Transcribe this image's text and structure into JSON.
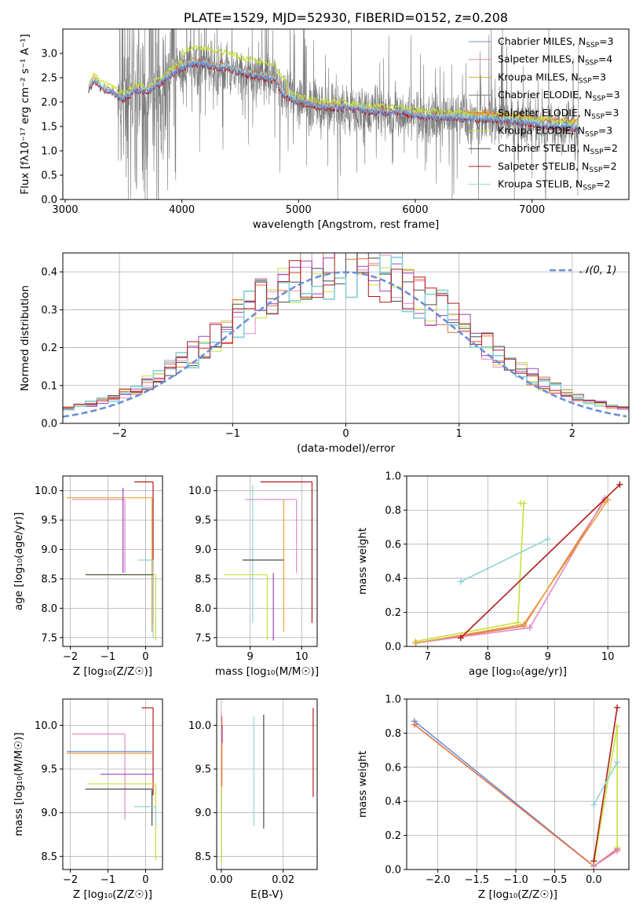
{
  "colors": {
    "chabrier_miles": "#6a8fd8",
    "salpeter_miles": "#e389c2",
    "kroupa_miles": "#e6a23c",
    "chabrier_elodie": "#7a7a7a",
    "salpeter_elodie": "#e76f3f",
    "kroupa_elodie": "#c5e23a",
    "chabrier_stelib": "#4a4a4a",
    "salpeter_stelib": "#b01c1c",
    "kroupa_stelib": "#8fd3d8",
    "normal_curve": "#6a8fd8",
    "extra_purple": "#a040c0",
    "grid": "#b0b0b0"
  },
  "chart_data": [
    {
      "id": "spectrum",
      "type": "line",
      "title": "PLATE=1529, MJD=52930, FIBERID=0152, z=0.208",
      "xlabel": "wavelength [Angstrom, rest frame]",
      "ylabel": "Flux [fλ10⁻¹⁷ erg cm⁻² s⁻¹ A⁻¹]",
      "xlim": [
        2980,
        7830
      ],
      "ylim": [
        0,
        3.5
      ],
      "xticks": [
        3000,
        4000,
        5000,
        6000,
        7000
      ],
      "xtick_labels": [
        "3000",
        "4000",
        "5000",
        "6000",
        "7000"
      ],
      "yticks": [
        0.0,
        0.5,
        1.0,
        1.5,
        2.0,
        2.5,
        3.0
      ],
      "ytick_labels": [
        "0.0",
        "0.5",
        "1.0",
        "1.5",
        "2.0",
        "2.5",
        "3.0"
      ],
      "grid": false,
      "legend_position": "top-right",
      "legend": [
        {
          "label": "Chabrier MILES, N",
          "sub": "SSP",
          "suffix": "=3",
          "color_key": "chabrier_miles"
        },
        {
          "label": "Salpeter MILES, N",
          "sub": "SSP",
          "suffix": "=4",
          "color_key": "salpeter_miles"
        },
        {
          "label": "Kroupa MILES, N",
          "sub": "SSP",
          "suffix": "=3",
          "color_key": "kroupa_miles"
        },
        {
          "label": "Chabrier ELODIE, N",
          "sub": "SSP",
          "suffix": "=3",
          "color_key": "chabrier_elodie"
        },
        {
          "label": "Salpeter ELODIE, N",
          "sub": "SSP",
          "suffix": "=3",
          "color_key": "salpeter_elodie"
        },
        {
          "label": "Kroupa ELODIE, N",
          "sub": "SSP",
          "suffix": "=3",
          "color_key": "kroupa_elodie"
        },
        {
          "label": "Chabrier STELIB, N",
          "sub": "SSP",
          "suffix": "=2",
          "color_key": "chabrier_stelib"
        },
        {
          "label": "Salpeter STELIB, N",
          "sub": "SSP",
          "suffix": "=2",
          "color_key": "salpeter_stelib"
        },
        {
          "label": "Kroupa STELIB, N",
          "sub": "SSP",
          "suffix": "=2",
          "color_key": "kroupa_stelib"
        }
      ],
      "continuum": {
        "x": [
          3200,
          3250,
          3300,
          3400,
          3500,
          3600,
          3700,
          3800,
          3900,
          4000,
          4100,
          4200,
          4300,
          4400,
          4500,
          4600,
          4700,
          4800,
          4850,
          4900,
          5000,
          5100,
          5200,
          5300,
          5400,
          5500,
          5600,
          5700,
          5800,
          5900,
          6000,
          6100,
          6200,
          6300,
          6400,
          6500,
          6600,
          6700,
          6800,
          6900,
          7000,
          7100,
          7200,
          7300,
          7400
        ],
        "y": [
          2.25,
          2.45,
          2.3,
          2.2,
          2.05,
          2.25,
          2.2,
          2.35,
          2.55,
          2.7,
          2.8,
          2.78,
          2.7,
          2.7,
          2.6,
          2.55,
          2.5,
          2.45,
          2.2,
          2.1,
          2.0,
          1.95,
          1.9,
          1.88,
          1.88,
          1.85,
          1.8,
          1.8,
          1.78,
          1.78,
          1.72,
          1.7,
          1.68,
          1.68,
          1.66,
          1.65,
          1.65,
          1.62,
          1.62,
          1.58,
          1.55,
          1.52,
          1.5,
          1.48,
          1.45
        ]
      },
      "noisy_observed": {
        "x_range": [
          3450,
          7400
        ],
        "y_range": [
          0,
          3.5
        ],
        "color_key": "chabrier_elodie"
      }
    },
    {
      "id": "residual_histogram",
      "type": "line",
      "xlabel": "(data-model)/error",
      "ylabel": "Normed distribution",
      "xlim": [
        -2.5,
        2.5
      ],
      "ylim": [
        0,
        0.45
      ],
      "xticks": [
        -2,
        -1,
        0,
        1,
        2
      ],
      "xtick_labels": [
        "−2",
        "−1",
        "0",
        "1",
        "2"
      ],
      "yticks": [
        0.0,
        0.1,
        0.2,
        0.3,
        0.4
      ],
      "ytick_labels": [
        "0.0",
        "0.1",
        "0.2",
        "0.3",
        "0.4"
      ],
      "grid": true,
      "legend_position": "top-right",
      "legend": [
        {
          "label": "𝒩(0, 1)",
          "color_key": "normal_curve"
        }
      ],
      "bin_width": 0.1,
      "normal_curve": {
        "mean": 0,
        "sigma": 1
      }
    },
    {
      "id": "age_vs_Z",
      "type": "scatter",
      "xlabel": "Z [log₁₀(Z/Z☉)]",
      "ylabel": "age  [log₁₀(age/yr)]",
      "xlim": [
        -2.2,
        0.45
      ],
      "ylim": [
        7.35,
        10.25
      ],
      "xticks": [
        -2,
        -1,
        0
      ],
      "xtick_labels": [
        "−2",
        "−1",
        "0"
      ],
      "yticks": [
        7.5,
        8.0,
        8.5,
        9.0,
        9.5,
        10.0
      ],
      "ytick_labels": [
        "7.5",
        "8.0",
        "8.5",
        "9.0",
        "9.5",
        "10.0"
      ],
      "grid": true,
      "crosses": [
        {
          "color_key": "salpeter_stelib",
          "x": 0.2,
          "y": 10.15,
          "x_low": -0.3,
          "y_low": 7.75
        },
        {
          "color_key": "kroupa_miles",
          "x": 0.17,
          "y": 9.88,
          "x_low": -2.1,
          "y_low": 7.6
        },
        {
          "color_key": "salpeter_miles",
          "x": -0.55,
          "y": 9.85,
          "x_low": -1.95,
          "y_low": 8.6
        },
        {
          "color_key": "extra_purple",
          "x": -0.6,
          "y": 10.05,
          "x_low": -0.6,
          "y_low": 8.6
        },
        {
          "color_key": "kroupa_stelib",
          "x": 0.2,
          "y": 8.82,
          "x_low": -0.2,
          "y_low": 7.5
        },
        {
          "color_key": "kroupa_elodie",
          "x": 0.27,
          "y": 8.57,
          "x_low": -1.55,
          "y_low": 7.45
        },
        {
          "color_key": "chabrier_stelib",
          "x": 0.2,
          "y": 8.57,
          "x_low": -1.6,
          "y_low": 8.57
        }
      ]
    },
    {
      "id": "age_vs_mass",
      "type": "scatter",
      "xlabel": "mass [log₁₀(M/M☉)]",
      "ylabel": "",
      "xlim": [
        8.35,
        10.3
      ],
      "ylim": [
        7.35,
        10.25
      ],
      "xticks": [
        9,
        10
      ],
      "xtick_labels": [
        "9",
        "10"
      ],
      "yticks": [
        7.5,
        8.0,
        8.5,
        9.0,
        9.5,
        10.0
      ],
      "ytick_labels": [
        "7.5",
        "8.0",
        "8.5",
        "9.0",
        "9.5",
        "10.0"
      ],
      "grid": true,
      "crosses": [
        {
          "color_key": "salpeter_stelib",
          "x": 10.2,
          "y": 10.15,
          "x_low": 9.2,
          "y_low": 7.75
        },
        {
          "color_key": "kroupa_miles",
          "x": 9.65,
          "y": 9.85,
          "x_low": 9.3,
          "y_low": 7.6
        },
        {
          "color_key": "salpeter_miles",
          "x": 9.9,
          "y": 9.85,
          "x_low": 8.9,
          "y_low": 8.6
        },
        {
          "color_key": "kroupa_stelib",
          "x": 9.05,
          "y": 10.1,
          "x_low": 9.05,
          "y_low": 7.75
        },
        {
          "color_key": "extra_purple",
          "x": 9.45,
          "y": 8.6,
          "x_low": 9.45,
          "y_low": 7.45
        },
        {
          "color_key": "kroupa_elodie",
          "x": 9.33,
          "y": 8.57,
          "x_low": 8.5,
          "y_low": 7.45
        },
        {
          "color_key": "chabrier_stelib",
          "x": 9.65,
          "y": 8.82,
          "x_low": 8.85,
          "y_low": 8.82
        }
      ]
    },
    {
      "id": "weight_vs_age",
      "type": "line",
      "xlabel": "age  [log₁₀(age/yr)]",
      "ylabel": "mass weight",
      "xlim": [
        6.65,
        10.35
      ],
      "ylim": [
        0,
        1.0
      ],
      "xticks": [
        7,
        8,
        9,
        10
      ],
      "xtick_labels": [
        "7",
        "8",
        "9",
        "10"
      ],
      "yticks": [
        0.0,
        0.2,
        0.4,
        0.6,
        0.8,
        1.0
      ],
      "ytick_labels": [
        "0.0",
        "0.2",
        "0.4",
        "0.6",
        "0.8",
        "1.0"
      ],
      "grid": true,
      "series": [
        {
          "color_key": "kroupa_elodie",
          "x": [
            6.8,
            8.5,
            8.6,
            8.55
          ],
          "y": [
            0.03,
            0.14,
            0.84,
            0.84
          ]
        },
        {
          "color_key": "salpeter_elodie",
          "x": [
            6.8,
            8.6,
            9.95
          ],
          "y": [
            0.02,
            0.12,
            0.86
          ]
        },
        {
          "color_key": "salpeter_miles",
          "x": [
            6.8,
            8.7,
            9.95
          ],
          "y": [
            0.02,
            0.11,
            0.87
          ]
        },
        {
          "color_key": "kroupa_miles",
          "x": [
            6.8,
            8.6,
            10.0
          ],
          "y": [
            0.02,
            0.13,
            0.86
          ]
        },
        {
          "color_key": "kroupa_stelib",
          "x": [
            7.55,
            9.0
          ],
          "y": [
            0.38,
            0.63
          ]
        },
        {
          "color_key": "salpeter_stelib",
          "x": [
            7.55,
            10.2
          ],
          "y": [
            0.05,
            0.95
          ]
        }
      ]
    },
    {
      "id": "mass_vs_Z",
      "type": "scatter",
      "xlabel": "Z [log₁₀(Z/Z☉)]",
      "ylabel": "mass [log₁₀(M/M☉)]",
      "xlim": [
        -2.2,
        0.45
      ],
      "ylim": [
        8.35,
        10.3
      ],
      "xticks": [
        -2,
        -1,
        0
      ],
      "xtick_labels": [
        "−2",
        "−1",
        "0"
      ],
      "yticks": [
        8.5,
        9.0,
        9.5,
        10.0
      ],
      "ytick_labels": [
        "8.5",
        "9.0",
        "9.5",
        "10.0"
      ],
      "grid": true,
      "crosses": [
        {
          "color_key": "salpeter_stelib",
          "x": 0.2,
          "y": 10.2,
          "x_low": -0.1,
          "y_low": 9.2
        },
        {
          "color_key": "salpeter_miles",
          "x": -0.55,
          "y": 9.9,
          "x_low": -1.95,
          "y_low": 8.92
        },
        {
          "color_key": "kroupa_miles",
          "x": 0.17,
          "y": 9.68,
          "x_low": -2.1,
          "y_low": 9.68
        },
        {
          "color_key": "chabrier_miles",
          "x": 0.17,
          "y": 9.7,
          "x_low": -2.1,
          "y_low": 9.7
        },
        {
          "color_key": "extra_purple",
          "x": 0.2,
          "y": 9.44,
          "x_low": -1.2,
          "y_low": 9.44
        },
        {
          "color_key": "kroupa_elodie",
          "x": 0.27,
          "y": 9.33,
          "x_low": -1.55,
          "y_low": 8.45
        },
        {
          "color_key": "chabrier_stelib",
          "x": 0.17,
          "y": 9.27,
          "x_low": -1.6,
          "y_low": 8.85
        },
        {
          "color_key": "kroupa_stelib",
          "x": 0.27,
          "y": 9.07,
          "x_low": -0.3,
          "y_low": 8.85
        }
      ]
    },
    {
      "id": "mass_vs_EBV",
      "type": "scatter",
      "xlabel": "E(B-V)",
      "ylabel": "",
      "xlim": [
        -0.0015,
        0.031
      ],
      "ylim": [
        8.35,
        10.3
      ],
      "xticks": [
        0.0,
        0.02
      ],
      "xtick_labels": [
        "0.00",
        "0.02"
      ],
      "yticks": [
        8.5,
        9.0,
        9.5,
        10.0
      ],
      "ytick_labels": [
        "8.5",
        "9.0",
        "9.5",
        "10.0"
      ],
      "grid": true,
      "vlines": [
        {
          "color_key": "salpeter_miles",
          "x": 0.0,
          "y_low": 9.0,
          "y_high": 10.15
        },
        {
          "color_key": "kroupa_elodie",
          "x": 0.0001,
          "y_low": 8.43,
          "y_high": 10.05
        },
        {
          "color_key": "salpeter_elodie",
          "x": 0.0002,
          "y_low": 9.3,
          "y_high": 10.1
        },
        {
          "color_key": "extra_purple",
          "x": 0.0003,
          "y_low": 9.8,
          "y_high": 10.0
        },
        {
          "color_key": "kroupa_stelib",
          "x": 0.0105,
          "y_low": 8.85,
          "y_high": 10.1
        },
        {
          "color_key": "chabrier_stelib",
          "x": 0.0137,
          "y_low": 8.82,
          "y_high": 10.12
        },
        {
          "color_key": "salpeter_stelib",
          "x": 0.0297,
          "y_low": 9.18,
          "y_high": 10.2
        }
      ]
    },
    {
      "id": "weight_vs_Z",
      "type": "line",
      "xlabel": "Z [log₁₀(Z/Z☉)]",
      "ylabel": "mass weight",
      "xlim": [
        -2.4,
        0.45
      ],
      "ylim": [
        0,
        1.0
      ],
      "xticks": [
        -2.0,
        -1.5,
        -1.0,
        -0.5,
        0.0
      ],
      "xtick_labels": [
        "−2.0",
        "−1.5",
        "−1.0",
        "−0.5",
        "0.0"
      ],
      "yticks": [
        0.0,
        0.2,
        0.4,
        0.6,
        0.8,
        1.0
      ],
      "ytick_labels": [
        "0.0",
        "0.2",
        "0.4",
        "0.6",
        "0.8",
        "1.0"
      ],
      "grid": true,
      "series": [
        {
          "color_key": "chabrier_miles",
          "x": [
            -2.3,
            0.0,
            0.3
          ],
          "y": [
            0.87,
            0.02,
            0.11
          ]
        },
        {
          "color_key": "salpeter_elodie",
          "x": [
            -2.3,
            0.0,
            0.3
          ],
          "y": [
            0.85,
            0.02,
            0.12
          ]
        },
        {
          "color_key": "kroupa_elodie",
          "x": [
            0.0,
            0.3,
            0.3
          ],
          "y": [
            0.03,
            0.84,
            0.13
          ]
        },
        {
          "color_key": "salpeter_stelib",
          "x": [
            0.0,
            0.3
          ],
          "y": [
            0.05,
            0.95
          ]
        },
        {
          "color_key": "kroupa_stelib",
          "x": [
            0.0,
            0.3
          ],
          "y": [
            0.38,
            0.63
          ]
        },
        {
          "color_key": "salpeter_miles",
          "x": [
            0.0,
            0.3
          ],
          "y": [
            0.02,
            0.11
          ]
        }
      ]
    }
  ]
}
